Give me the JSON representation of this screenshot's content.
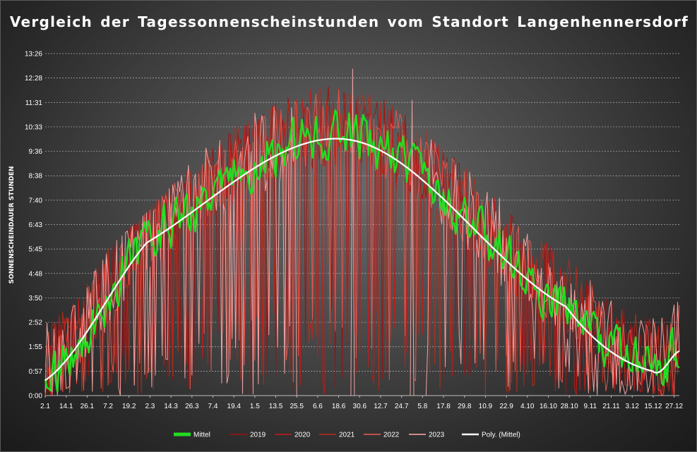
{
  "chart_data": {
    "type": "line",
    "title": "Vergleich der Tagessonnenscheinstunden  vom Standort  Langenhennersdorf",
    "ylabel": "SONNENSCHEINDAUER STUNDEN",
    "xlabel": "",
    "y_tick_labels": [
      "0:00",
      "0:57",
      "1:55",
      "2:52",
      "3:50",
      "4:48",
      "5:45",
      "6:43",
      "7:40",
      "8:38",
      "9:36",
      "10:33",
      "11:31",
      "12:28",
      "13:26"
    ],
    "ylim_hours": [
      0,
      13.433
    ],
    "x_tick_labels": [
      "2.1",
      "14.1",
      "26.1",
      "7.2",
      "19.2",
      "2.3",
      "14.3",
      "26.3",
      "7.4",
      "19.4",
      "1.5",
      "13.5",
      "25.5",
      "6.6",
      "18.6",
      "30.6",
      "12.7",
      "24.7",
      "5.8",
      "17.8",
      "29.8",
      "10.9",
      "22.9",
      "4.10",
      "16.10",
      "28.10",
      "9.11",
      "21.11",
      "3.12",
      "15.12",
      "27.12"
    ],
    "x_days": [
      2,
      365
    ],
    "x_tick_step_days": 12,
    "grid": true,
    "legend_position": "bottom",
    "series": [
      {
        "name": "Mittel",
        "color": "#22dd22",
        "width": 2.5,
        "seed": 11,
        "amp": 1.3
      },
      {
        "name": "2019",
        "color": "#a01010",
        "width": 1,
        "seed": 23,
        "amp": 3.2
      },
      {
        "name": "2020",
        "color": "#c81818",
        "width": 1,
        "seed": 37,
        "amp": 3.2
      },
      {
        "name": "2021",
        "color": "#b82a1a",
        "width": 1,
        "seed": 51,
        "amp": 3.2
      },
      {
        "name": "2022",
        "color": "#ee5a50",
        "width": 1,
        "seed": 67,
        "amp": 3.0
      },
      {
        "name": "2023",
        "color": "#ffaaaa",
        "width": 1,
        "seed": 83,
        "amp": 3.4,
        "gap_days": [
          146,
          220
        ],
        "gap_spike_days": [
          141,
          178,
          212
        ]
      },
      {
        "name": "Poly. (Mittel)",
        "color": "#ffffff",
        "width": 2.2,
        "trend": true
      }
    ],
    "trend_points": [
      {
        "day": 2,
        "hours": 0.6
      },
      {
        "day": 60,
        "hours": 6.0
      },
      {
        "day": 176,
        "hours": 10.05
      },
      {
        "day": 300,
        "hours": 3.5
      },
      {
        "day": 350,
        "hours": 0.95
      },
      {
        "day": 365,
        "hours": 1.75
      }
    ]
  }
}
